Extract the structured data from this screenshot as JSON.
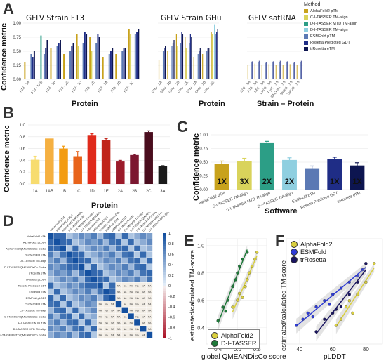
{
  "panels": {
    "A": {
      "letter": "A"
    },
    "B": {
      "letter": "B"
    },
    "C": {
      "letter": "C"
    },
    "D": {
      "letter": "D"
    },
    "E": {
      "letter": "E"
    },
    "F": {
      "letter": "F"
    }
  },
  "colors": {
    "AlphaFold2 pTM": "#c8a21c",
    "C-I-TASSER TM-align": "#d9d35b",
    "D-I-TASSER MTD TM-align": "#2c9e86",
    "D-I-TASSER TM-align": "#8fcfe0",
    "ESMFold pTM": "#5b79b4",
    "Rosetta Predicted GDT": "#1f2d86",
    "trRosetta eTM": "#0d1550"
  },
  "legend": {
    "title": "Method",
    "items": [
      "AlphaFold2 pTM",
      "C-I-TASSER TM-align",
      "D-I-TASSER MTD TM-align",
      "D-I-TASSER TM-align",
      "ESMFold pTM",
      "Rosetta Predicted GDT",
      "trRosetta eTM"
    ]
  },
  "chart_data": [
    {
      "panel": "A",
      "type": "bar",
      "ylabel": "Confidence metric",
      "ylim": [
        0,
        1
      ],
      "yticks": [
        "0.00",
        "0.25",
        "0.50",
        "0.75",
        "1.00"
      ],
      "methods": [
        "AlphaFold2 pTM",
        "C-I-TASSER TM-align",
        "D-I-TASSER MTD TM-align",
        "D-I-TASSER TM-align",
        "ESMFold pTM",
        "Rosetta Predicted GDT",
        "trRosetta eTM"
      ],
      "facets": [
        {
          "title": "GFLV Strain F13",
          "xlabel": "Protein",
          "categories": [
            "F13 - 1A",
            "F13 - 1AB",
            "F13 - 1B",
            "F13 - 1C",
            "F13 - 1D",
            "F13 - 1E",
            "F13 - 2A",
            "F13 - 2B",
            "F13 - 2C"
          ],
          "values": [
            [
              0.3,
              null,
              null,
              null,
              0.45,
              0.4,
              0.5
            ],
            [
              null,
              null,
              0.78,
              null,
              0.45,
              0.55,
              0.7
            ],
            [
              0.55,
              null,
              null,
              null,
              0.6,
              0.65,
              0.7
            ],
            [
              0.45,
              null,
              null,
              null,
              0.5,
              0.6,
              0.65
            ],
            [
              0.8,
              0.6,
              null,
              null,
              0.65,
              0.85,
              0.8
            ],
            [
              0.75,
              0.5,
              null,
              null,
              0.65,
              0.8,
              0.75
            ],
            [
              0.4,
              null,
              null,
              null,
              0.45,
              0.5,
              0.55
            ],
            [
              0.45,
              null,
              null,
              null,
              0.5,
              0.55,
              0.55
            ],
            [
              0.9,
              0.8,
              null,
              null,
              0.8,
              0.85,
              0.9
            ]
          ]
        },
        {
          "title": "GFLV Strain GHu",
          "xlabel": "Protein",
          "categories": [
            "GHu - 1A",
            "GHu - 1B",
            "GHu - 1D",
            "GHu - 1E",
            "GHu - 2A",
            "GHu - 2B",
            "GHu - 2C"
          ],
          "values": [
            [
              0.35,
              null,
              null,
              null,
              0.5,
              0.55,
              0.6
            ],
            [
              0.5,
              null,
              null,
              null,
              0.6,
              0.65,
              0.7
            ],
            [
              0.8,
              0.6,
              null,
              null,
              0.65,
              0.85,
              0.8
            ],
            [
              0.75,
              0.55,
              null,
              null,
              0.65,
              0.8,
              0.75
            ],
            [
              0.4,
              null,
              null,
              null,
              0.45,
              0.5,
              0.55
            ],
            [
              0.45,
              null,
              null,
              null,
              0.5,
              0.55,
              0.55
            ],
            [
              0.85,
              0.8,
              null,
              0.98,
              0.8,
              0.85,
              0.9
            ]
          ]
        },
        {
          "title": "GFLV satRNA",
          "xlabel": "Strain – Protein",
          "categories": [
            "C02 - 3A",
            "F13 - 3A",
            "KE1 - 3A",
            "Li400 - 3A",
            "PyrT - 3A",
            "SACH44 - 3A",
            "SWE6 - 3A",
            "ZqP20 - 3A"
          ],
          "values": [
            [
              0.25,
              null,
              null,
              null,
              0.3,
              0.32,
              0.3
            ],
            [
              0.28,
              null,
              null,
              null,
              0.3,
              0.33,
              0.31
            ],
            [
              0.26,
              null,
              null,
              null,
              0.29,
              0.31,
              0.3
            ],
            [
              0.27,
              null,
              null,
              null,
              0.3,
              0.32,
              0.31
            ],
            [
              0.26,
              null,
              null,
              null,
              0.31,
              0.33,
              0.3
            ],
            [
              0.25,
              null,
              null,
              null,
              0.3,
              0.32,
              0.31
            ],
            [
              0.27,
              null,
              null,
              null,
              0.29,
              0.31,
              0.3
            ],
            [
              0.26,
              null,
              null,
              null,
              0.31,
              0.33,
              0.31
            ]
          ]
        }
      ]
    },
    {
      "panel": "B",
      "type": "bar",
      "xlabel": "Protein",
      "ylabel": "Confidence metric",
      "ylim": [
        0,
        1.0
      ],
      "yticks": [
        "0.0",
        "0.2",
        "0.4",
        "0.6",
        "0.8",
        "1.0"
      ],
      "categories": [
        "1A",
        "1AB",
        "1B",
        "1C",
        "1D",
        "1E",
        "2A",
        "2B",
        "2C",
        "3A"
      ],
      "values": [
        0.41,
        0.77,
        0.6,
        0.47,
        0.83,
        0.74,
        0.38,
        0.49,
        0.88,
        0.3
      ],
      "errors": [
        0.06,
        0.0,
        0.04,
        0.08,
        0.02,
        0.03,
        0.02,
        0.01,
        0.02,
        0.01
      ],
      "bar_colors": [
        "#f7dc6f",
        "#f5b041",
        "#f39c12",
        "#e8641b",
        "#e02b1c",
        "#c0241a",
        "#9b1b2a",
        "#7b1730",
        "#4a0d1e",
        "#1a1a1a"
      ]
    },
    {
      "panel": "C",
      "type": "bar",
      "xlabel": "Software",
      "ylabel": "Confidence metric",
      "ylim": [
        0,
        1.0
      ],
      "yticks": [
        "0.00",
        "0.25",
        "0.50",
        "0.75",
        "1.00"
      ],
      "categories": [
        "AlphaFold2 pTM",
        "C-I-TASSER TM-align",
        "D-I-TASSER MTD TM-align",
        "D-I-TASSER TM-align",
        "ESMFold pTM",
        "Rosetta Predicted GDT",
        "trRosetta eTM"
      ],
      "values": [
        0.47,
        0.52,
        0.86,
        0.54,
        0.39,
        0.56,
        0.44
      ],
      "errors": [
        0.05,
        0.05,
        0.02,
        0.04,
        0.04,
        0.03,
        0.05
      ],
      "labels": [
        "1X",
        "3X",
        "2X",
        "2X",
        "",
        "1X",
        "1X"
      ]
    },
    {
      "panel": "D",
      "type": "heatmap",
      "variables": [
        "AlphaFold2 pTM",
        "AlphaFold2 pLDDT",
        "AlphaFold2 QMEANDisCo Global",
        "D-I-TASSER eTM",
        "D-I-TASSER TM-align",
        "D-I-TASSER QMEANDisCo Global",
        "trRosetta eTM",
        "trRosetta pLDDT",
        "Rosetta Predicted GDT",
        "ESMFold pTM",
        "ESMFold pLDDT",
        "C-I-TASSER eTM",
        "C-I-TASSER TM-align",
        "C-I-TASSER QMEANDisCo Global",
        "D-I-TASSER MTD eTM",
        "D-I-TASSER MTD TM-align",
        "D-I-TASSER MTD QMEANDisCo Global"
      ],
      "scale_ticks": [
        "1",
        "0.8",
        "0.6",
        "0.4",
        "0.2",
        "0",
        "-0.2",
        "-0.4",
        "-0.6",
        "-0.8",
        "-1"
      ],
      "na_label": "NA"
    },
    {
      "panel": "E",
      "type": "scatter",
      "xlabel": "global QMEANDisCo score",
      "ylabel": "estimated/calculated TM-score",
      "xticks": [
        "0.4",
        "0.6",
        "0.8"
      ],
      "yticks": [
        "0.4",
        "0.6",
        "0.8",
        "1.0"
      ],
      "xlim": [
        0.28,
        0.9
      ],
      "ylim": [
        0.28,
        1.05
      ],
      "series": [
        {
          "name": "AlphaFold2",
          "color": "#d9cf3f",
          "points": [
            [
              0.55,
              0.55
            ],
            [
              0.6,
              0.6
            ],
            [
              0.65,
              0.62
            ],
            [
              0.7,
              0.75
            ],
            [
              0.72,
              0.8
            ],
            [
              0.75,
              0.85
            ],
            [
              0.78,
              0.9
            ],
            [
              0.62,
              0.65
            ],
            [
              0.68,
              0.7
            ],
            [
              0.8,
              0.95
            ]
          ]
        },
        {
          "name": "D-I-TASSER",
          "color": "#1f7a3a",
          "points": [
            [
              0.4,
              0.45
            ],
            [
              0.45,
              0.55
            ],
            [
              0.5,
              0.6
            ],
            [
              0.55,
              0.7
            ],
            [
              0.6,
              0.8
            ],
            [
              0.65,
              0.9
            ],
            [
              0.7,
              0.95
            ],
            [
              0.48,
              0.52
            ],
            [
              0.58,
              0.75
            ],
            [
              0.62,
              0.85
            ]
          ]
        }
      ]
    },
    {
      "panel": "F",
      "type": "scatter",
      "xlabel": "pLDDT",
      "ylabel": "estimated/calculated TM-score",
      "xticks": [
        "40",
        "60",
        "80"
      ],
      "xlim": [
        32,
        90
      ],
      "ylim": [
        0.2,
        1.05
      ],
      "series": [
        {
          "name": "AlphaFold2",
          "color": "#d9cf3f",
          "points": [
            [
              62,
              0.35
            ],
            [
              65,
              0.4
            ],
            [
              70,
              0.55
            ],
            [
              75,
              0.6
            ],
            [
              80,
              0.7
            ],
            [
              85,
              0.85
            ],
            [
              68,
              0.5
            ],
            [
              72,
              0.45
            ]
          ]
        },
        {
          "name": "ESMFold",
          "color": "#2e3bd6",
          "points": [
            [
              38,
              0.35
            ],
            [
              42,
              0.4
            ],
            [
              45,
              0.45
            ],
            [
              50,
              0.5
            ],
            [
              55,
              0.55
            ],
            [
              60,
              0.6
            ],
            [
              65,
              0.65
            ],
            [
              70,
              0.7
            ],
            [
              75,
              0.75
            ],
            [
              80,
              0.85
            ],
            [
              48,
              0.42
            ],
            [
              58,
              0.52
            ],
            [
              78,
              0.8
            ]
          ]
        },
        {
          "name": "trRosetta",
          "color": "#1a1560",
          "points": [
            [
              50,
              0.3
            ],
            [
              55,
              0.4
            ],
            [
              60,
              0.45
            ],
            [
              65,
              0.5
            ],
            [
              70,
              0.6
            ],
            [
              75,
              0.7
            ],
            [
              80,
              0.85
            ],
            [
              62,
              0.48
            ]
          ]
        }
      ]
    }
  ]
}
